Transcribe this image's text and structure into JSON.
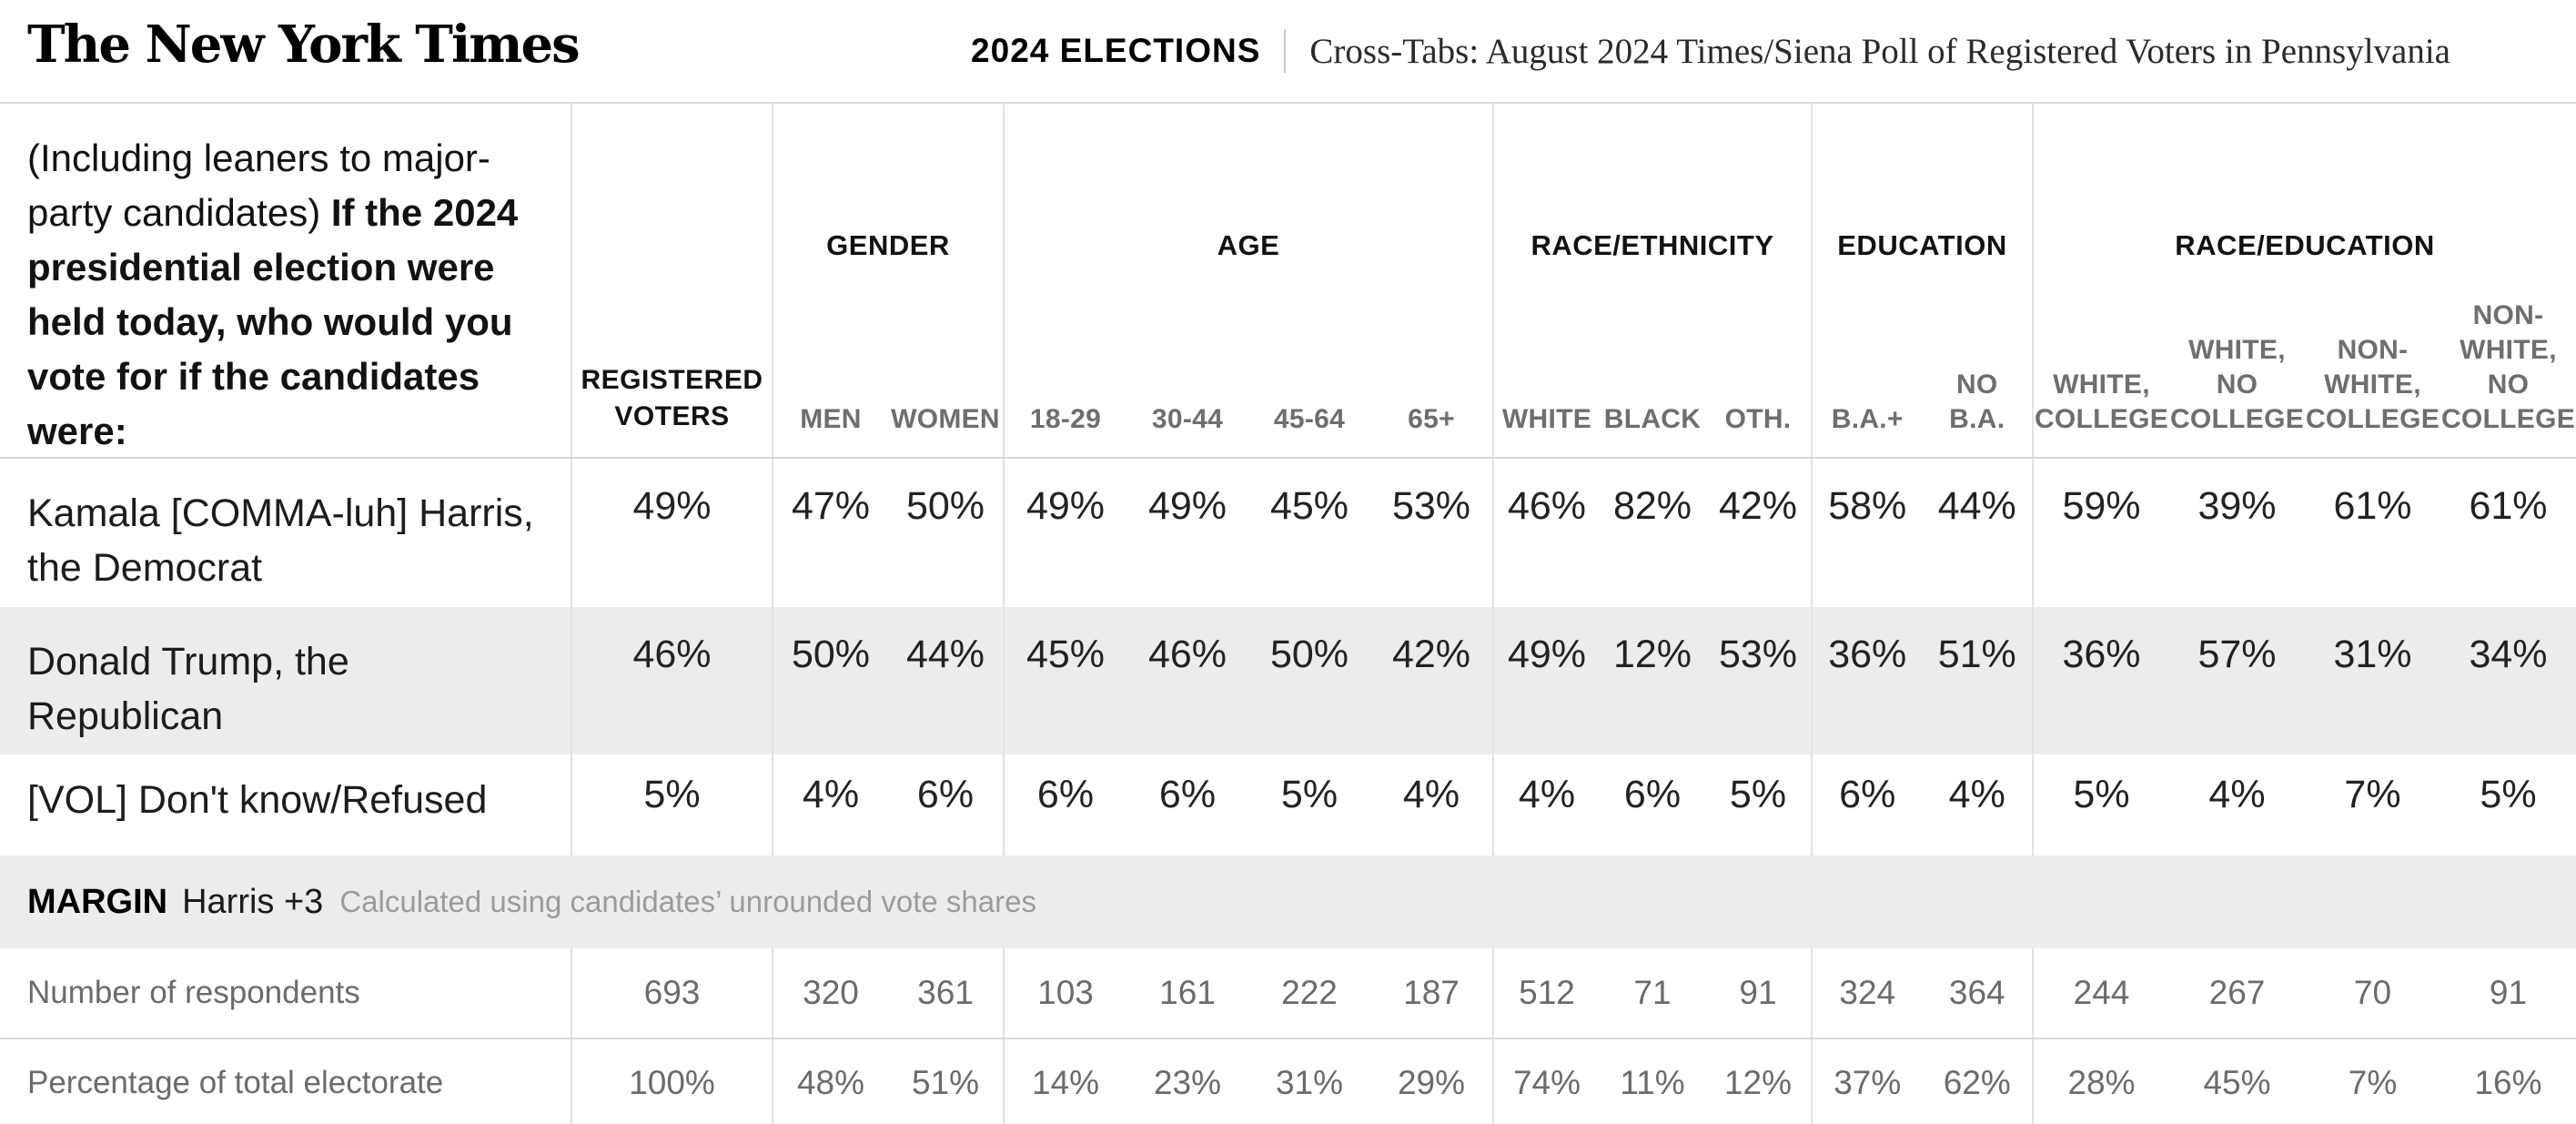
{
  "header": {
    "logo": "The New York Times",
    "kicker": "2024 ELECTIONS",
    "title": "Cross-Tabs: August 2024 Times/Siena Poll of Registered Voters in Pennsylvania"
  },
  "question": {
    "prefix": "(Including leaners to major-party candidates) ",
    "bold": "If the 2024 presidential election were held today, who would you vote for if the candidates were:"
  },
  "columns": {
    "registered_voters": "REGISTERED VOTERS",
    "groups": [
      {
        "label": "GENDER",
        "cols": [
          "MEN",
          "WOMEN"
        ]
      },
      {
        "label": "AGE",
        "cols": [
          "18-29",
          "30-44",
          "45-64",
          "65+"
        ]
      },
      {
        "label": "RACE/ETHNICITY",
        "cols": [
          "WHITE",
          "BLACK",
          "OTH."
        ]
      },
      {
        "label": "EDUCATION",
        "cols": [
          "B.A.+",
          "NO\nB.A."
        ]
      },
      {
        "label": "RACE/EDUCATION",
        "cols": [
          "WHITE,\nCOLLEGE",
          "WHITE,\nNO\nCOLLEGE",
          "NON-\nWHITE,\nCOLLEGE",
          "NON-\nWHITE,\nNO\nCOLLEGE"
        ]
      }
    ]
  },
  "rows": [
    {
      "label": "Kamala [COMMA-luh] Harris, the Democrat",
      "values": [
        "49%",
        "47%",
        "50%",
        "49%",
        "49%",
        "45%",
        "53%",
        "46%",
        "82%",
        "42%",
        "58%",
        "44%",
        "59%",
        "39%",
        "61%",
        "61%"
      ]
    },
    {
      "label": "Donald Trump, the Republican",
      "values": [
        "46%",
        "50%",
        "44%",
        "45%",
        "46%",
        "50%",
        "42%",
        "49%",
        "12%",
        "53%",
        "36%",
        "51%",
        "36%",
        "57%",
        "31%",
        "34%"
      ]
    },
    {
      "label": "[VOL] Don't know/Refused",
      "values": [
        "5%",
        "4%",
        "6%",
        "6%",
        "6%",
        "5%",
        "4%",
        "4%",
        "6%",
        "5%",
        "6%",
        "4%",
        "5%",
        "4%",
        "7%",
        "5%"
      ]
    }
  ],
  "margin": {
    "label": "MARGIN",
    "value": "Harris +3",
    "note": "Calculated using candidates’ unrounded vote shares"
  },
  "footer_rows": [
    {
      "label": "Number of respondents",
      "values": [
        "693",
        "320",
        "361",
        "103",
        "161",
        "222",
        "187",
        "512",
        "71",
        "91",
        "324",
        "364",
        "244",
        "267",
        "70",
        "91"
      ]
    },
    {
      "label": "Percentage of total electorate",
      "values": [
        "100%",
        "48%",
        "51%",
        "14%",
        "23%",
        "31%",
        "29%",
        "74%",
        "11%",
        "12%",
        "37%",
        "62%",
        "28%",
        "45%",
        "7%",
        "16%"
      ]
    }
  ],
  "colors": {
    "row_band": "#ececec",
    "border": "#d9d9d9",
    "separator": "#e2e2e2",
    "muted_text": "#6b6b6b",
    "note_text": "#9b9b9b"
  }
}
